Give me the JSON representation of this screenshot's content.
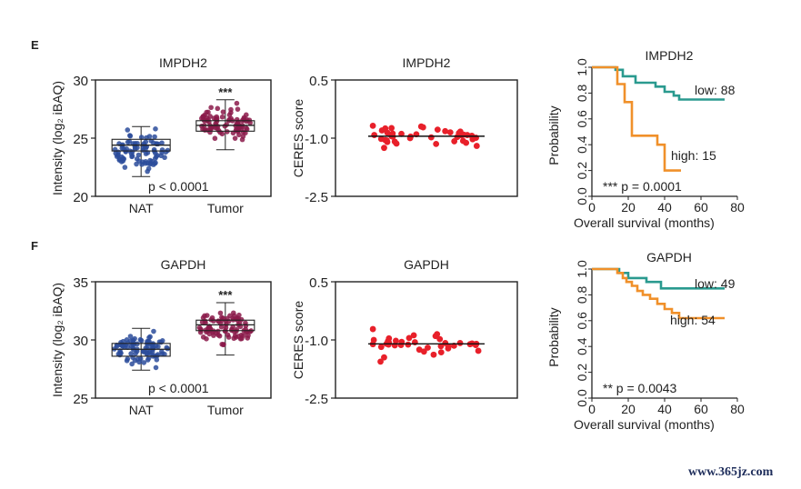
{
  "watermark": "www.365jz.com",
  "chart_data": [
    {
      "panel": "E",
      "type": "box",
      "title": "IMPDH2",
      "ylabel": "Intensity (log₂ iBAQ)",
      "categories": [
        "NAT",
        "Tumor"
      ],
      "ylim": [
        20,
        30
      ],
      "yticks": [
        20,
        25,
        30
      ],
      "annotation": "p < 0.0001",
      "significance": "***",
      "colors": {
        "NAT": "#2b4c9b",
        "Tumor": "#8b1a4a"
      },
      "boxes": [
        {
          "name": "NAT",
          "whisker_low": 21.7,
          "q1": 23.9,
          "median": 24.4,
          "q3": 24.9,
          "whisker_high": 26.0
        },
        {
          "name": "Tumor",
          "whisker_low": 24.0,
          "q1": 25.6,
          "median": 26.1,
          "q3": 26.5,
          "whisker_high": 28.3
        }
      ]
    },
    {
      "panel": "E",
      "type": "scatter",
      "title": "IMPDH2",
      "ylabel": "CERES score",
      "ylim": [
        -2.5,
        0.5
      ],
      "yticks": [
        0.5,
        -1.0,
        -2.5
      ],
      "mean": -0.95,
      "color": "#e8202a",
      "values": [
        -0.68,
        -0.72,
        -0.75,
        -0.7,
        -0.78,
        -0.8,
        -0.74,
        -0.82,
        -0.85,
        -0.83,
        -0.88,
        -0.86,
        -0.9,
        -0.87,
        -0.92,
        -0.89,
        -0.93,
        -0.91,
        -0.95,
        -0.96,
        -0.94,
        -0.98,
        -0.97,
        -1.0,
        -1.02,
        -0.99,
        -1.05,
        -1.03,
        -1.08,
        -1.06,
        -1.1,
        -1.07,
        -1.12,
        -1.14,
        -1.2,
        -1.25,
        -1.15,
        -1.09,
        -0.92,
        -0.96
      ]
    },
    {
      "panel": "E",
      "type": "line",
      "subtype": "kaplan-meier",
      "title": "IMPDH2",
      "xlabel": "Overall survival (months)",
      "ylabel": "Probability",
      "xlim": [
        0,
        80
      ],
      "ylim": [
        0,
        1
      ],
      "xticks": [
        0,
        20,
        40,
        60,
        80
      ],
      "yticks": [
        0.0,
        0.2,
        0.4,
        0.6,
        0.8,
        1.0
      ],
      "annotation": "*** p = 0.0001",
      "series": [
        {
          "name": "low: 88",
          "color": "#2a9a8f",
          "x": [
            0,
            13,
            13,
            17,
            17,
            24,
            24,
            35,
            35,
            40,
            40,
            45,
            45,
            48,
            48,
            73
          ],
          "y": [
            1,
            1,
            0.98,
            0.98,
            0.93,
            0.93,
            0.88,
            0.88,
            0.85,
            0.85,
            0.81,
            0.81,
            0.78,
            0.78,
            0.75,
            0.75
          ]
        },
        {
          "name": "high: 15",
          "color": "#f0902a",
          "x": [
            0,
            14,
            14,
            18,
            18,
            22,
            22,
            36,
            36,
            40,
            40,
            49
          ],
          "y": [
            1,
            1,
            0.87,
            0.87,
            0.73,
            0.73,
            0.47,
            0.47,
            0.4,
            0.4,
            0.2,
            0.2
          ]
        }
      ]
    },
    {
      "panel": "F",
      "type": "box",
      "title": "GAPDH",
      "ylabel": "Intensity (log₂ iBAQ)",
      "categories": [
        "NAT",
        "Tumor"
      ],
      "ylim": [
        25,
        35
      ],
      "yticks": [
        25,
        30,
        35
      ],
      "annotation": "p < 0.0001",
      "significance": "***",
      "colors": {
        "NAT": "#2b4c9b",
        "Tumor": "#8b1a4a"
      },
      "boxes": [
        {
          "name": "NAT",
          "whisker_low": 27.4,
          "q1": 28.6,
          "median": 29.2,
          "q3": 29.7,
          "whisker_high": 31.0
        },
        {
          "name": "Tumor",
          "whisker_low": 28.7,
          "q1": 30.8,
          "median": 31.3,
          "q3": 31.7,
          "whisker_high": 33.2
        }
      ]
    },
    {
      "panel": "F",
      "type": "scatter",
      "title": "GAPDH",
      "ylabel": "CERES score",
      "ylim": [
        -2.5,
        0.5
      ],
      "yticks": [
        0.5,
        -1.0,
        -2.5
      ],
      "mean": -1.1,
      "color": "#e8202a",
      "values": [
        -0.72,
        -0.85,
        -0.9,
        -0.95,
        -0.88,
        -0.98,
        -1.0,
        -0.96,
        -1.02,
        -1.05,
        -1.03,
        -1.06,
        -1.08,
        -1.07,
        -1.1,
        -1.09,
        -1.11,
        -1.12,
        -1.1,
        -1.13,
        -1.14,
        -1.12,
        -1.15,
        -1.16,
        -1.18,
        -1.2,
        -1.22,
        -1.25,
        -1.28,
        -1.3,
        -1.32,
        -1.38,
        -1.45,
        -1.56,
        -1.08,
        -1.11,
        -1.13,
        -1.17
      ]
    },
    {
      "panel": "F",
      "type": "line",
      "subtype": "kaplan-meier",
      "title": "GAPDH",
      "xlabel": "Overall survival (months)",
      "ylabel": "Probability",
      "xlim": [
        0,
        80
      ],
      "ylim": [
        0,
        1
      ],
      "xticks": [
        0,
        20,
        40,
        60,
        80
      ],
      "yticks": [
        0.0,
        0.2,
        0.4,
        0.6,
        0.8,
        1.0
      ],
      "annotation": "** p = 0.0043",
      "series": [
        {
          "name": "low: 49",
          "color": "#2a9a8f",
          "x": [
            0,
            15,
            15,
            20,
            20,
            30,
            30,
            38,
            38,
            73
          ],
          "y": [
            1,
            1,
            0.97,
            0.97,
            0.93,
            0.93,
            0.9,
            0.9,
            0.85,
            0.85
          ]
        },
        {
          "name": "high: 54",
          "color": "#f0902a",
          "x": [
            0,
            14,
            14,
            17,
            17,
            19,
            19,
            22,
            22,
            25,
            25,
            28,
            28,
            32,
            32,
            36,
            36,
            40,
            40,
            44,
            44,
            48,
            48,
            73
          ],
          "y": [
            1,
            1,
            0.97,
            0.97,
            0.93,
            0.93,
            0.9,
            0.9,
            0.87,
            0.87,
            0.83,
            0.83,
            0.8,
            0.8,
            0.77,
            0.77,
            0.73,
            0.73,
            0.69,
            0.69,
            0.66,
            0.66,
            0.62,
            0.62
          ]
        }
      ]
    }
  ]
}
